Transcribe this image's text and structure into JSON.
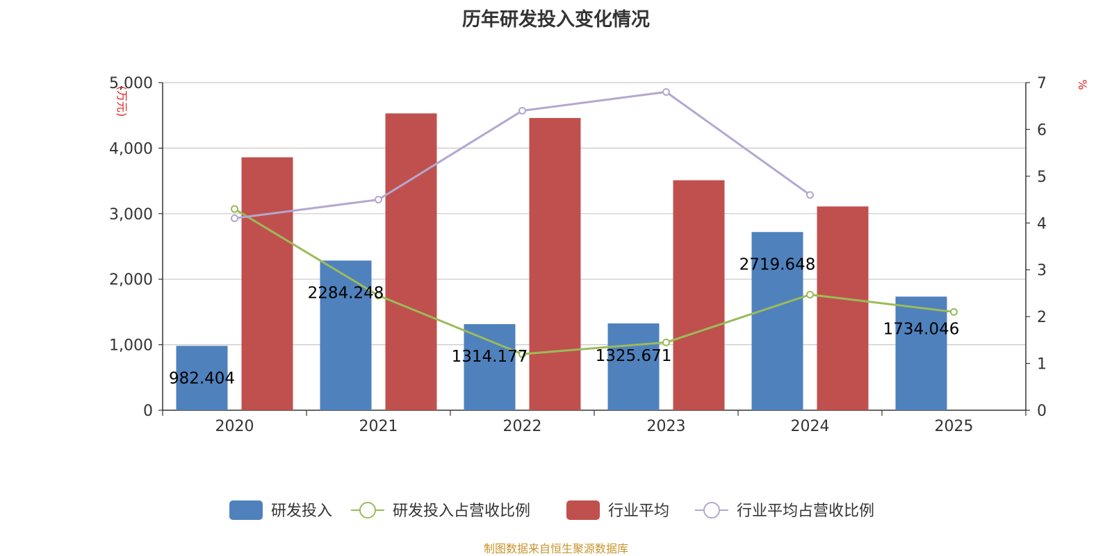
{
  "chart_data": {
    "type": "bar",
    "title": "历年研发投入变化情况",
    "categories": [
      "2020",
      "2021",
      "2022",
      "2023",
      "2024",
      "2025"
    ],
    "left_axis": {
      "unit": "万元",
      "ylim": [
        0,
        5000
      ],
      "ticks": [
        0,
        1000,
        2000,
        3000,
        4000,
        5000
      ],
      "tick_labels": [
        "0",
        "1,000",
        "2,000",
        "3,000",
        "4,000",
        "5,000"
      ]
    },
    "right_axis": {
      "unit": "%",
      "ylim": [
        0,
        7
      ],
      "ticks": [
        0,
        1,
        2,
        3,
        4,
        5,
        6,
        7
      ],
      "tick_labels": [
        "0",
        "1",
        "2",
        "3",
        "4",
        "5",
        "6",
        "7"
      ]
    },
    "grid": true,
    "legend_position": "bottom-center",
    "series": [
      {
        "name": "研发投入",
        "type": "bar",
        "axis": "left",
        "color": "#4f81bd",
        "values": [
          982.404,
          2284.248,
          1314.177,
          1325.671,
          2719.648,
          1734.046
        ],
        "labels": [
          "982.404",
          "2284.248",
          "1314.177",
          "1325.671",
          "2719.648",
          "1734.046"
        ]
      },
      {
        "name": "研发投入占营收比例",
        "type": "line",
        "axis": "right",
        "color": "#9bbb59",
        "values": [
          4.3,
          2.45,
          1.2,
          1.45,
          2.47,
          2.1
        ]
      },
      {
        "name": "行业平均",
        "type": "bar",
        "axis": "left",
        "color": "#c0504d",
        "values": [
          3860,
          4530,
          4460,
          3510,
          3110,
          null
        ]
      },
      {
        "name": "行业平均占营收比例",
        "type": "line",
        "axis": "right",
        "color": "#b3a7cf",
        "values": [
          4.1,
          4.5,
          6.4,
          6.8,
          4.6,
          null
        ]
      }
    ]
  },
  "footer": {
    "source": "制图数据来自恒生聚源数据库"
  }
}
